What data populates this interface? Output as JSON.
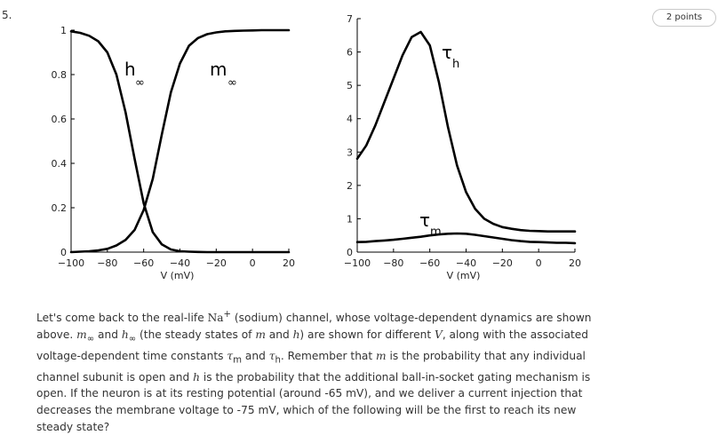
{
  "question": {
    "number": "5.",
    "points": "2 points",
    "text_parts": [
      "Let's come back to the real-life ",
      "Na",
      "+",
      " (sodium) channel, whose voltage-dependent dynamics are shown above. ",
      "m",
      "∞",
      " and ",
      "h",
      "∞",
      " (the steady states of ",
      "m",
      " and ",
      "h",
      ") are shown for different ",
      "V",
      ", along with the associated voltage-dependent time constants ",
      "τ",
      "m",
      " and ",
      "τ",
      "h",
      ". Remember that ",
      "m",
      " is the probability that any individual channel subunit is open and ",
      "h",
      " is the probability that the additional ball-in-socket gating mechanism is open. If the neuron is at its resting potential (around -65 mV), and we deliver a current injection that decreases the membrane voltage to -75 mV, which of the following will be the first to reach its new steady state?"
    ]
  },
  "chart_data": [
    {
      "type": "line",
      "xlabel": "V (mV)",
      "ylabel": "",
      "xlim": [
        -100,
        20
      ],
      "ylim": [
        0,
        1
      ],
      "xticks": [
        -100,
        -80,
        -60,
        -40,
        -20,
        0,
        20
      ],
      "yticks": [
        0,
        0.2,
        0.4,
        0.6,
        0.8,
        1
      ],
      "ytick_labels": [
        "0",
        "0.2",
        "0.4",
        "0.6",
        "0.8",
        "1"
      ],
      "curve_labels": [
        {
          "main": "h",
          "sub": "∞"
        },
        {
          "main": "m",
          "sub": "∞"
        }
      ],
      "series": [
        {
          "x": [
            -100,
            -95,
            -90,
            -85,
            -80,
            -75,
            -70,
            -65,
            -60,
            -55,
            -50,
            -45,
            -40,
            -35,
            -30,
            -25,
            -20,
            -15,
            -10,
            -5,
            0,
            5,
            10,
            15,
            20
          ],
          "values": [
            0.995,
            0.988,
            0.975,
            0.95,
            0.9,
            0.8,
            0.63,
            0.42,
            0.22,
            0.09,
            0.035,
            0.012,
            0.004,
            0.002,
            0.001,
            0,
            0,
            0,
            0,
            0,
            0,
            0,
            0,
            0,
            0
          ]
        },
        {
          "x": [
            -100,
            -95,
            -90,
            -85,
            -80,
            -75,
            -70,
            -65,
            -60,
            -55,
            -50,
            -45,
            -40,
            -35,
            -30,
            -25,
            -20,
            -15,
            -10,
            -5,
            0,
            5,
            10,
            15,
            20
          ],
          "values": [
            0,
            0.002,
            0.004,
            0.008,
            0.015,
            0.03,
            0.055,
            0.1,
            0.19,
            0.33,
            0.53,
            0.72,
            0.85,
            0.93,
            0.965,
            0.982,
            0.99,
            0.995,
            0.997,
            0.998,
            0.999,
            1,
            1,
            1,
            1
          ]
        }
      ]
    },
    {
      "type": "line",
      "xlabel": "V (mV)",
      "ylabel": "",
      "xlim": [
        -100,
        20
      ],
      "ylim": [
        0,
        7
      ],
      "xticks": [
        -100,
        -80,
        -60,
        -40,
        -20,
        0,
        20
      ],
      "yticks": [
        0,
        1,
        2,
        3,
        4,
        5,
        6,
        7
      ],
      "curve_labels": [
        {
          "main": "τ",
          "sub": "h"
        },
        {
          "main": "τ",
          "sub": "m"
        }
      ],
      "series": [
        {
          "x": [
            -100,
            -95,
            -90,
            -85,
            -80,
            -75,
            -70,
            -65,
            -60,
            -55,
            -50,
            -45,
            -40,
            -35,
            -30,
            -25,
            -20,
            -15,
            -10,
            -5,
            0,
            5,
            10,
            15,
            20
          ],
          "values": [
            2.8,
            3.2,
            3.8,
            4.5,
            5.2,
            5.9,
            6.45,
            6.6,
            6.2,
            5.1,
            3.75,
            2.6,
            1.8,
            1.3,
            1.0,
            0.85,
            0.75,
            0.7,
            0.66,
            0.64,
            0.63,
            0.62,
            0.62,
            0.62,
            0.62
          ]
        },
        {
          "x": [
            -100,
            -95,
            -90,
            -85,
            -80,
            -75,
            -70,
            -65,
            -60,
            -55,
            -50,
            -45,
            -40,
            -35,
            -30,
            -25,
            -20,
            -15,
            -10,
            -5,
            0,
            5,
            10,
            15,
            20
          ],
          "values": [
            0.3,
            0.31,
            0.33,
            0.35,
            0.37,
            0.4,
            0.43,
            0.46,
            0.5,
            0.53,
            0.55,
            0.56,
            0.55,
            0.52,
            0.48,
            0.44,
            0.4,
            0.36,
            0.33,
            0.31,
            0.3,
            0.29,
            0.28,
            0.28,
            0.27
          ]
        }
      ]
    }
  ]
}
